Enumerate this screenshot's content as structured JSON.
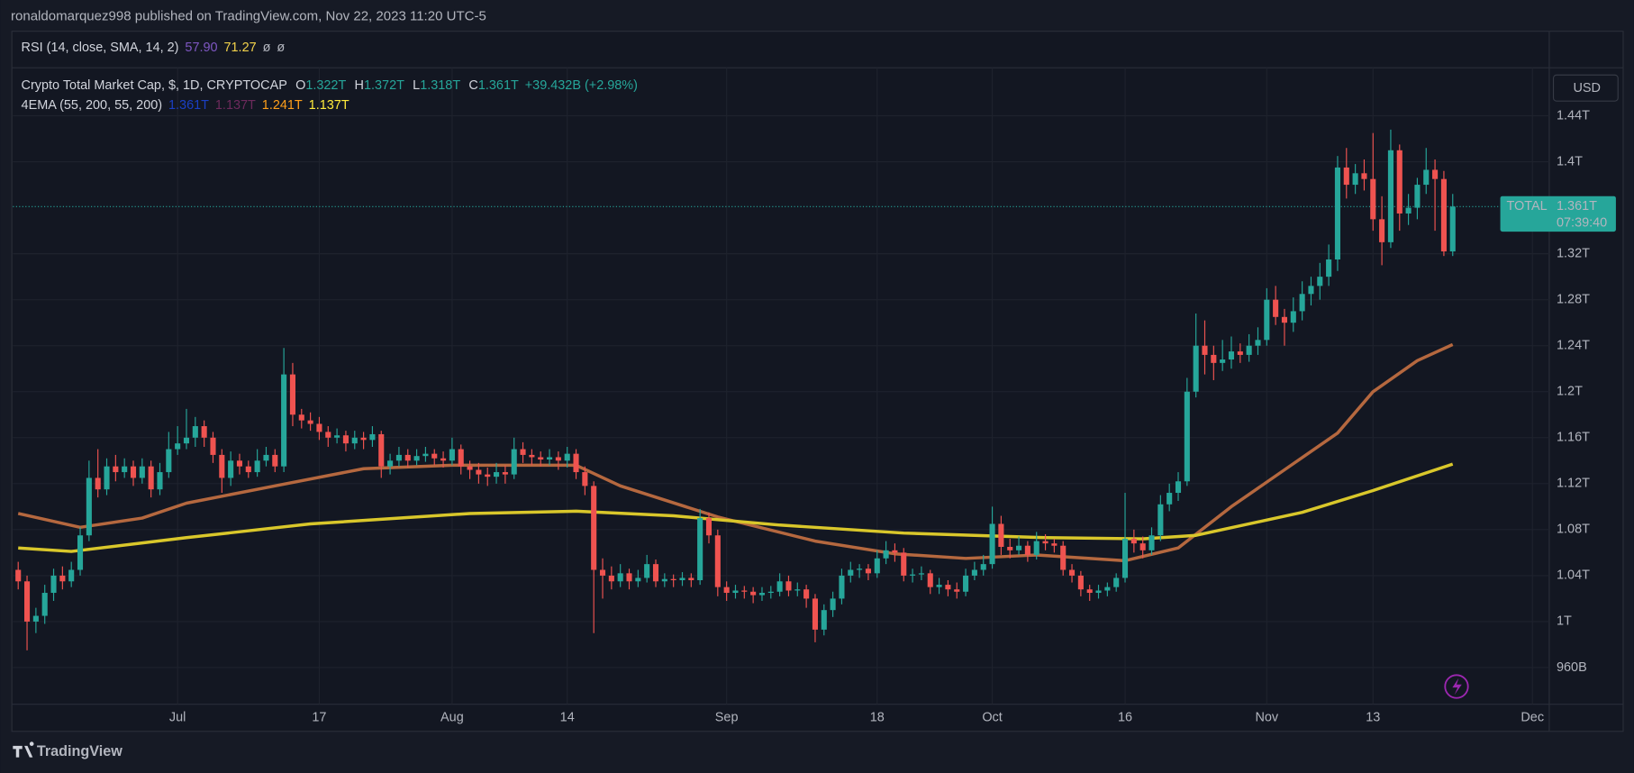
{
  "header": {
    "title": "ronaldomarquez998 published on TradingView.com, Nov 22, 2023 11:20 UTC-5"
  },
  "rsi_legend": {
    "label": "RSI (14, close, SMA, 14, 2)",
    "values": [
      {
        "text": "57.90",
        "color": "#7e57c2"
      },
      {
        "text": "71.27",
        "color": "#f2d24b"
      },
      {
        "text": "ø",
        "color": "#b2b5be"
      },
      {
        "text": "ø",
        "color": "#b2b5be"
      }
    ]
  },
  "symbol_legend": {
    "label": "Crypto Total Market Cap, $, 1D, CRYPTOCAP",
    "color": "#26a69a",
    "fields": [
      {
        "key": "O",
        "value": "1.322T"
      },
      {
        "key": "H",
        "value": "1.372T"
      },
      {
        "key": "L",
        "value": "1.318T"
      },
      {
        "key": "C",
        "value": "1.361T"
      }
    ],
    "change": "+39.432B (+2.98%)"
  },
  "ema_legend": {
    "label": "4EMA (55, 200, 55, 200)",
    "values": [
      {
        "text": "1.361T",
        "color": "#1a3fc4"
      },
      {
        "text": "1.137T",
        "color": "#6d2a5c"
      },
      {
        "text": "1.241T",
        "color": "#ff9f1a"
      },
      {
        "text": "1.137T",
        "color": "#ffeb3b"
      }
    ]
  },
  "currency_button": "USD",
  "footer": {
    "brand": "TradingView"
  },
  "chart_data": {
    "type": "candlestick",
    "up_color": "#26a69a",
    "down_color": "#ef5350",
    "xlim": [
      -0.6,
      172.9
    ],
    "ylim": [
      0.929,
      1.48
    ],
    "grid": true,
    "xticks": [
      {
        "value": 18,
        "label": "Jul"
      },
      {
        "value": 34,
        "label": "17"
      },
      {
        "value": 49,
        "label": "Aug"
      },
      {
        "value": 62,
        "label": "14"
      },
      {
        "value": 80,
        "label": "Sep"
      },
      {
        "value": 97,
        "label": "18"
      },
      {
        "value": 110,
        "label": "Oct"
      },
      {
        "value": 125,
        "label": "16"
      },
      {
        "value": 141,
        "label": "Nov"
      },
      {
        "value": 153,
        "label": "13"
      },
      {
        "value": 171,
        "label": "Dec"
      }
    ],
    "yticks": [
      {
        "value": 0.96,
        "label": "960B"
      },
      {
        "value": 1,
        "label": "1T"
      },
      {
        "value": 1.04,
        "label": "1.04T"
      },
      {
        "value": 1.08,
        "label": "1.08T"
      },
      {
        "value": 1.12,
        "label": "1.12T"
      },
      {
        "value": 1.16,
        "label": "1.16T"
      },
      {
        "value": 1.2,
        "label": "1.2T"
      },
      {
        "value": 1.24,
        "label": "1.24T"
      },
      {
        "value": 1.28,
        "label": "1.28T"
      },
      {
        "value": 1.32,
        "label": "1.32T"
      },
      {
        "value": 1.4,
        "label": "1.4T"
      },
      {
        "value": 1.44,
        "label": "1.44T"
      }
    ],
    "price_label": {
      "name": "TOTAL",
      "value": 1.361,
      "value_label": "1.361T",
      "countdown": "07:39:40",
      "color": "#26a69a"
    },
    "ema_lines": [
      {
        "color": "#b5683f",
        "x": [
          0,
          7,
          14,
          19,
          29,
          39,
          49,
          63,
          68,
          79,
          90,
          99,
          107,
          115,
          125,
          131,
          137,
          143,
          149,
          153,
          158,
          162
        ],
        "values": [
          1.094,
          1.082,
          1.09,
          1.103,
          1.118,
          1.133,
          1.136,
          1.136,
          1.118,
          1.091,
          1.07,
          1.059,
          1.055,
          1.058,
          1.053,
          1.064,
          1.1,
          1.132,
          1.164,
          1.2,
          1.227,
          1.241
        ]
      },
      {
        "color": "#d9c72b",
        "x": [
          0,
          6,
          19,
          33,
          51,
          63,
          74,
          86,
          100,
          116,
          127,
          133,
          145,
          153,
          162
        ],
        "values": [
          1.064,
          1.061,
          1.073,
          1.085,
          1.094,
          1.096,
          1.092,
          1.084,
          1.077,
          1.073,
          1.072,
          1.075,
          1.095,
          1.114,
          1.137
        ]
      }
    ],
    "ohlc": [
      [
        1.045,
        1.052,
        1.028,
        1.035
      ],
      [
        1.035,
        1.04,
        0.975,
        1.0
      ],
      [
        1.0,
        1.012,
        0.99,
        1.005
      ],
      [
        1.005,
        1.032,
        0.998,
        1.025
      ],
      [
        1.025,
        1.046,
        1.018,
        1.04
      ],
      [
        1.04,
        1.048,
        1.028,
        1.035
      ],
      [
        1.035,
        1.052,
        1.03,
        1.045
      ],
      [
        1.045,
        1.082,
        1.04,
        1.075
      ],
      [
        1.075,
        1.14,
        1.07,
        1.125
      ],
      [
        1.125,
        1.15,
        1.108,
        1.115
      ],
      [
        1.115,
        1.142,
        1.11,
        1.135
      ],
      [
        1.135,
        1.145,
        1.122,
        1.13
      ],
      [
        1.13,
        1.142,
        1.125,
        1.135
      ],
      [
        1.135,
        1.14,
        1.118,
        1.125
      ],
      [
        1.125,
        1.142,
        1.12,
        1.135
      ],
      [
        1.135,
        1.14,
        1.108,
        1.115
      ],
      [
        1.115,
        1.138,
        1.11,
        1.13
      ],
      [
        1.13,
        1.165,
        1.125,
        1.15
      ],
      [
        1.15,
        1.17,
        1.145,
        1.155
      ],
      [
        1.155,
        1.185,
        1.15,
        1.16
      ],
      [
        1.16,
        1.178,
        1.152,
        1.17
      ],
      [
        1.17,
        1.175,
        1.152,
        1.16
      ],
      [
        1.16,
        1.165,
        1.138,
        1.145
      ],
      [
        1.145,
        1.15,
        1.112,
        1.125
      ],
      [
        1.125,
        1.148,
        1.118,
        1.14
      ],
      [
        1.14,
        1.146,
        1.128,
        1.135
      ],
      [
        1.135,
        1.14,
        1.125,
        1.13
      ],
      [
        1.13,
        1.15,
        1.126,
        1.14
      ],
      [
        1.14,
        1.152,
        1.135,
        1.145
      ],
      [
        1.145,
        1.15,
        1.13,
        1.135
      ],
      [
        1.135,
        1.238,
        1.13,
        1.215
      ],
      [
        1.215,
        1.225,
        1.17,
        1.18
      ],
      [
        1.18,
        1.185,
        1.168,
        1.175
      ],
      [
        1.175,
        1.182,
        1.166,
        1.172
      ],
      [
        1.172,
        1.178,
        1.158,
        1.165
      ],
      [
        1.165,
        1.17,
        1.152,
        1.16
      ],
      [
        1.16,
        1.168,
        1.155,
        1.162
      ],
      [
        1.162,
        1.166,
        1.148,
        1.155
      ],
      [
        1.155,
        1.166,
        1.15,
        1.16
      ],
      [
        1.16,
        1.165,
        1.15,
        1.158
      ],
      [
        1.158,
        1.17,
        1.152,
        1.163
      ],
      [
        1.163,
        1.166,
        1.125,
        1.135
      ],
      [
        1.135,
        1.146,
        1.128,
        1.14
      ],
      [
        1.14,
        1.152,
        1.135,
        1.145
      ],
      [
        1.145,
        1.15,
        1.134,
        1.14
      ],
      [
        1.14,
        1.15,
        1.136,
        1.144
      ],
      [
        1.144,
        1.152,
        1.139,
        1.146
      ],
      [
        1.146,
        1.15,
        1.136,
        1.142
      ],
      [
        1.142,
        1.148,
        1.134,
        1.14
      ],
      [
        1.14,
        1.16,
        1.136,
        1.15
      ],
      [
        1.15,
        1.154,
        1.128,
        1.135
      ],
      [
        1.135,
        1.14,
        1.124,
        1.132
      ],
      [
        1.132,
        1.138,
        1.12,
        1.128
      ],
      [
        1.128,
        1.134,
        1.118,
        1.126
      ],
      [
        1.126,
        1.138,
        1.12,
        1.13
      ],
      [
        1.13,
        1.136,
        1.12,
        1.128
      ],
      [
        1.128,
        1.16,
        1.124,
        1.15
      ],
      [
        1.15,
        1.156,
        1.138,
        1.145
      ],
      [
        1.145,
        1.15,
        1.136,
        1.143
      ],
      [
        1.143,
        1.148,
        1.135,
        1.141
      ],
      [
        1.141,
        1.15,
        1.136,
        1.143
      ],
      [
        1.143,
        1.148,
        1.132,
        1.14
      ],
      [
        1.14,
        1.152,
        1.134,
        1.146
      ],
      [
        1.146,
        1.15,
        1.124,
        1.13
      ],
      [
        1.13,
        1.135,
        1.11,
        1.118
      ],
      [
        1.118,
        1.122,
        0.99,
        1.045
      ],
      [
        1.045,
        1.055,
        1.02,
        1.04
      ],
      [
        1.04,
        1.048,
        1.028,
        1.035
      ],
      [
        1.035,
        1.05,
        1.03,
        1.042
      ],
      [
        1.042,
        1.046,
        1.028,
        1.035
      ],
      [
        1.035,
        1.045,
        1.03,
        1.038
      ],
      [
        1.038,
        1.058,
        1.034,
        1.05
      ],
      [
        1.05,
        1.054,
        1.03,
        1.035
      ],
      [
        1.035,
        1.042,
        1.03,
        1.037
      ],
      [
        1.037,
        1.041,
        1.03,
        1.036
      ],
      [
        1.036,
        1.043,
        1.031,
        1.038
      ],
      [
        1.038,
        1.042,
        1.03,
        1.036
      ],
      [
        1.036,
        1.098,
        1.032,
        1.09
      ],
      [
        1.09,
        1.095,
        1.068,
        1.075
      ],
      [
        1.075,
        1.08,
        1.022,
        1.03
      ],
      [
        1.03,
        1.035,
        1.018,
        1.025
      ],
      [
        1.025,
        1.032,
        1.02,
        1.027
      ],
      [
        1.027,
        1.031,
        1.02,
        1.026
      ],
      [
        1.026,
        1.03,
        1.016,
        1.023
      ],
      [
        1.023,
        1.03,
        1.018,
        1.025
      ],
      [
        1.025,
        1.031,
        1.02,
        1.026
      ],
      [
        1.026,
        1.042,
        1.022,
        1.035
      ],
      [
        1.035,
        1.04,
        1.022,
        1.027
      ],
      [
        1.027,
        1.034,
        1.022,
        1.028
      ],
      [
        1.028,
        1.032,
        1.012,
        1.02
      ],
      [
        1.02,
        1.024,
        0.982,
        0.993
      ],
      [
        0.993,
        1.015,
        0.988,
        1.01
      ],
      [
        1.01,
        1.026,
        1.004,
        1.02
      ],
      [
        1.02,
        1.046,
        1.015,
        1.04
      ],
      [
        1.04,
        1.052,
        1.034,
        1.045
      ],
      [
        1.045,
        1.05,
        1.038,
        1.046
      ],
      [
        1.046,
        1.05,
        1.036,
        1.042
      ],
      [
        1.042,
        1.062,
        1.038,
        1.055
      ],
      [
        1.055,
        1.07,
        1.05,
        1.062
      ],
      [
        1.062,
        1.068,
        1.052,
        1.06
      ],
      [
        1.06,
        1.064,
        1.035,
        1.04
      ],
      [
        1.04,
        1.046,
        1.034,
        1.041
      ],
      [
        1.041,
        1.048,
        1.036,
        1.042
      ],
      [
        1.042,
        1.045,
        1.024,
        1.03
      ],
      [
        1.03,
        1.038,
        1.024,
        1.032
      ],
      [
        1.032,
        1.036,
        1.022,
        1.028
      ],
      [
        1.028,
        1.034,
        1.02,
        1.026
      ],
      [
        1.026,
        1.046,
        1.022,
        1.04
      ],
      [
        1.04,
        1.052,
        1.036,
        1.045
      ],
      [
        1.045,
        1.058,
        1.04,
        1.05
      ],
      [
        1.05,
        1.1,
        1.046,
        1.085
      ],
      [
        1.085,
        1.092,
        1.058,
        1.065
      ],
      [
        1.065,
        1.072,
        1.055,
        1.062
      ],
      [
        1.062,
        1.074,
        1.058,
        1.066
      ],
      [
        1.066,
        1.07,
        1.052,
        1.058
      ],
      [
        1.058,
        1.078,
        1.054,
        1.07
      ],
      [
        1.07,
        1.076,
        1.062,
        1.068
      ],
      [
        1.068,
        1.072,
        1.06,
        1.066
      ],
      [
        1.066,
        1.07,
        1.04,
        1.045
      ],
      [
        1.045,
        1.05,
        1.034,
        1.04
      ],
      [
        1.04,
        1.044,
        1.022,
        1.028
      ],
      [
        1.028,
        1.032,
        1.018,
        1.025
      ],
      [
        1.025,
        1.032,
        1.02,
        1.027
      ],
      [
        1.027,
        1.034,
        1.022,
        1.03
      ],
      [
        1.03,
        1.042,
        1.026,
        1.038
      ],
      [
        1.038,
        1.112,
        1.034,
        1.072
      ],
      [
        1.072,
        1.08,
        1.06,
        1.068
      ],
      [
        1.068,
        1.074,
        1.055,
        1.062
      ],
      [
        1.062,
        1.082,
        1.058,
        1.075
      ],
      [
        1.075,
        1.11,
        1.07,
        1.102
      ],
      [
        1.102,
        1.12,
        1.096,
        1.112
      ],
      [
        1.112,
        1.13,
        1.105,
        1.122
      ],
      [
        1.122,
        1.212,
        1.118,
        1.2
      ],
      [
        1.2,
        1.268,
        1.195,
        1.24
      ],
      [
        1.24,
        1.262,
        1.215,
        1.232
      ],
      [
        1.232,
        1.24,
        1.21,
        1.225
      ],
      [
        1.225,
        1.245,
        1.218,
        1.228
      ],
      [
        1.228,
        1.248,
        1.22,
        1.235
      ],
      [
        1.235,
        1.242,
        1.225,
        1.232
      ],
      [
        1.232,
        1.25,
        1.226,
        1.24
      ],
      [
        1.24,
        1.256,
        1.232,
        1.245
      ],
      [
        1.245,
        1.29,
        1.24,
        1.28
      ],
      [
        1.28,
        1.292,
        1.258,
        1.265
      ],
      [
        1.265,
        1.272,
        1.24,
        1.26
      ],
      [
        1.26,
        1.282,
        1.252,
        1.27
      ],
      [
        1.27,
        1.296,
        1.262,
        1.285
      ],
      [
        1.285,
        1.3,
        1.275,
        1.292
      ],
      [
        1.292,
        1.312,
        1.28,
        1.3
      ],
      [
        1.3,
        1.328,
        1.292,
        1.315
      ],
      [
        1.315,
        1.405,
        1.305,
        1.395
      ],
      [
        1.395,
        1.412,
        1.368,
        1.38
      ],
      [
        1.38,
        1.398,
        1.372,
        1.39
      ],
      [
        1.39,
        1.402,
        1.375,
        1.385
      ],
      [
        1.385,
        1.425,
        1.34,
        1.35
      ],
      [
        1.35,
        1.37,
        1.31,
        1.33
      ],
      [
        1.33,
        1.428,
        1.325,
        1.41
      ],
      [
        1.41,
        1.415,
        1.34,
        1.355
      ],
      [
        1.355,
        1.372,
        1.345,
        1.36
      ],
      [
        1.36,
        1.386,
        1.35,
        1.38
      ],
      [
        1.38,
        1.412,
        1.372,
        1.393
      ],
      [
        1.393,
        1.402,
        1.34,
        1.385
      ],
      [
        1.385,
        1.392,
        1.318,
        1.322
      ],
      [
        1.322,
        1.372,
        1.318,
        1.361
      ]
    ]
  }
}
